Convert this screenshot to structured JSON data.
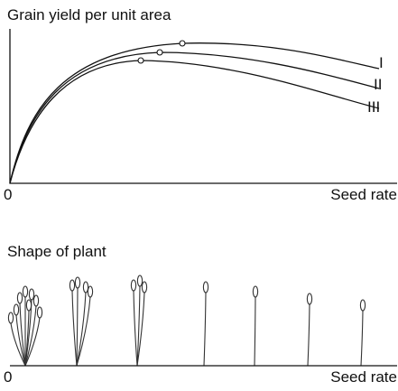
{
  "top_chart": {
    "y_label": "Grain yield per unit area",
    "origin": "0",
    "x_label": "Seed rate",
    "curve_labels": [
      "I",
      "II",
      "III"
    ]
  },
  "bottom_panel": {
    "title": "Shape of plant",
    "origin": "0",
    "x_label": "Seed rate"
  }
}
